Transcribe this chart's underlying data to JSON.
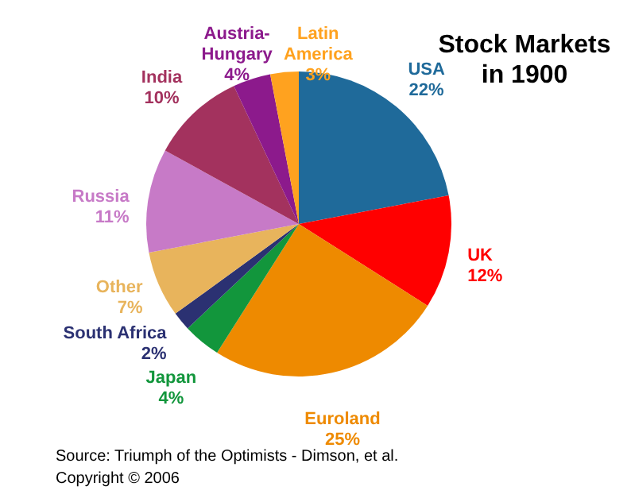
{
  "chart_data": {
    "type": "pie",
    "title": "Stock Markets in 1900",
    "categories": [
      "USA",
      "UK",
      "Euroland",
      "Japan",
      "South Africa",
      "Other",
      "Russia",
      "India",
      "Austria-Hungary",
      "Latin America"
    ],
    "values": [
      22,
      12,
      25,
      4,
      2,
      7,
      11,
      10,
      4,
      3
    ],
    "colors": [
      "#1f6a9a",
      "#ff0000",
      "#ee8a00",
      "#12963c",
      "#2b3172",
      "#e8b45c",
      "#c77ac7",
      "#a3325e",
      "#8c1a8c",
      "#ffa21f"
    ],
    "value_labels": [
      "22%",
      "12%",
      "25%",
      "4%",
      "2%",
      "7%",
      "11%",
      "10%",
      "4%",
      "3%"
    ],
    "annotations": [
      "Source: Triumph of the Optimists - Dimson, et al.",
      "Copyright © 2006"
    ]
  }
}
